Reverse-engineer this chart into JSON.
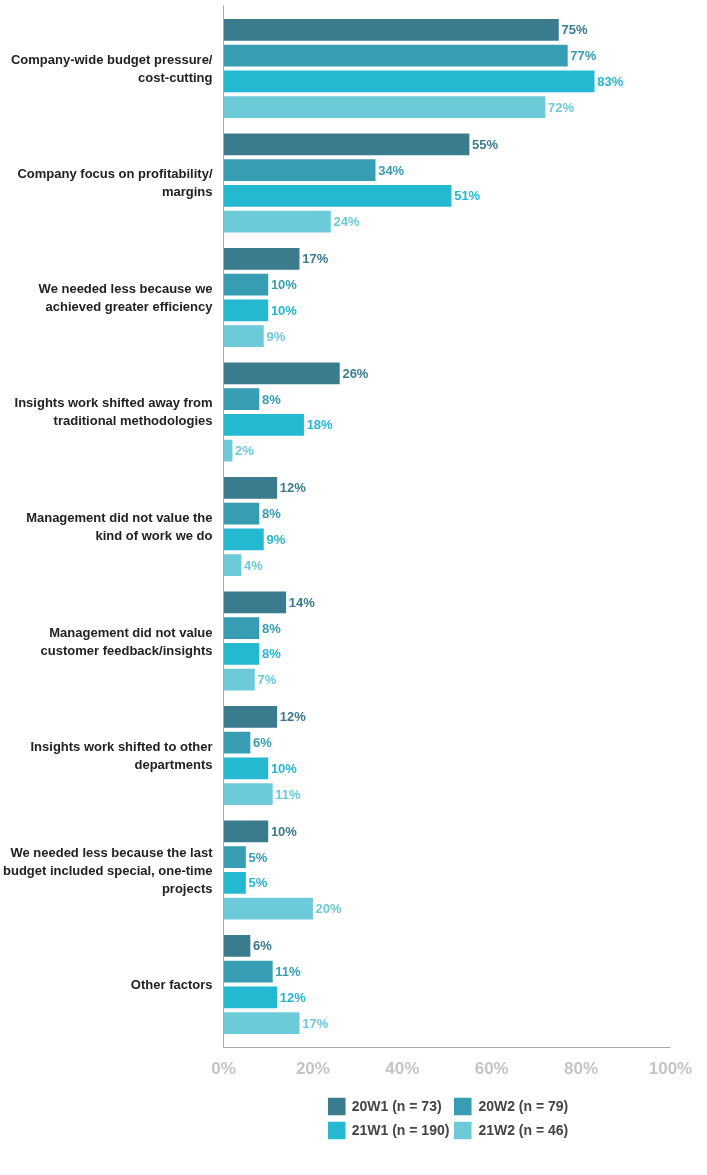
{
  "chart_data": {
    "type": "bar",
    "orientation": "horizontal",
    "categories": [
      "Company-wide budget pressure/\ncost-cutting",
      "Company focus on profitability/\nmargins",
      "We needed less because we\nachieved greater efficiency",
      "Insights work shifted away from\ntraditional methodologies",
      "Management did not value the\nkind of work we do",
      "Management did not value\ncustomer feedback/insights",
      "Insights work shifted to other\ndepartments",
      "We needed less because the last\nbudget included special, one-time\nprojects",
      "Other factors"
    ],
    "series": [
      {
        "name": "20W1 (n = 73)",
        "color": "#3b7b8e",
        "values": [
          75,
          55,
          17,
          26,
          12,
          14,
          12,
          10,
          6
        ],
        "value_labels": [
          "75%",
          "55%",
          "17%",
          "26%",
          "12%",
          "14%",
          "12%",
          "10%",
          "6%"
        ]
      },
      {
        "name": "20W2 (n = 79)",
        "color": "#379db3",
        "values": [
          77,
          34,
          10,
          8,
          8,
          8,
          6,
          5,
          11
        ],
        "value_labels": [
          "77%",
          "34%",
          "10%",
          "8%",
          "8%",
          "8%",
          "6%",
          "5%",
          "11%"
        ]
      },
      {
        "name": "21W1 (n = 190)",
        "color": "#25b8d1",
        "values": [
          83,
          51,
          10,
          18,
          9,
          8,
          10,
          5,
          12
        ],
        "value_labels": [
          "83%",
          "51%",
          "10%",
          "18%",
          "9%",
          "8%",
          "10%",
          "5%",
          "12%"
        ]
      },
      {
        "name": "21W2 (n = 46)",
        "color": "#6ccad9",
        "values": [
          72,
          24,
          9,
          2,
          4,
          7,
          11,
          20,
          17
        ],
        "value_labels": [
          "72%",
          "24%",
          "9%",
          "2%",
          "4%",
          "7%",
          "11%",
          "20%",
          "17%"
        ]
      }
    ],
    "xlim": [
      0,
      100
    ],
    "xticks": [
      {
        "value": 0,
        "label": "0%"
      },
      {
        "value": 20,
        "label": "20%"
      },
      {
        "value": 40,
        "label": "40%"
      },
      {
        "value": 60,
        "label": "60%"
      },
      {
        "value": 80,
        "label": "80%"
      },
      {
        "value": 100,
        "label": "100%"
      }
    ],
    "grid": false,
    "legend": "bottom"
  }
}
